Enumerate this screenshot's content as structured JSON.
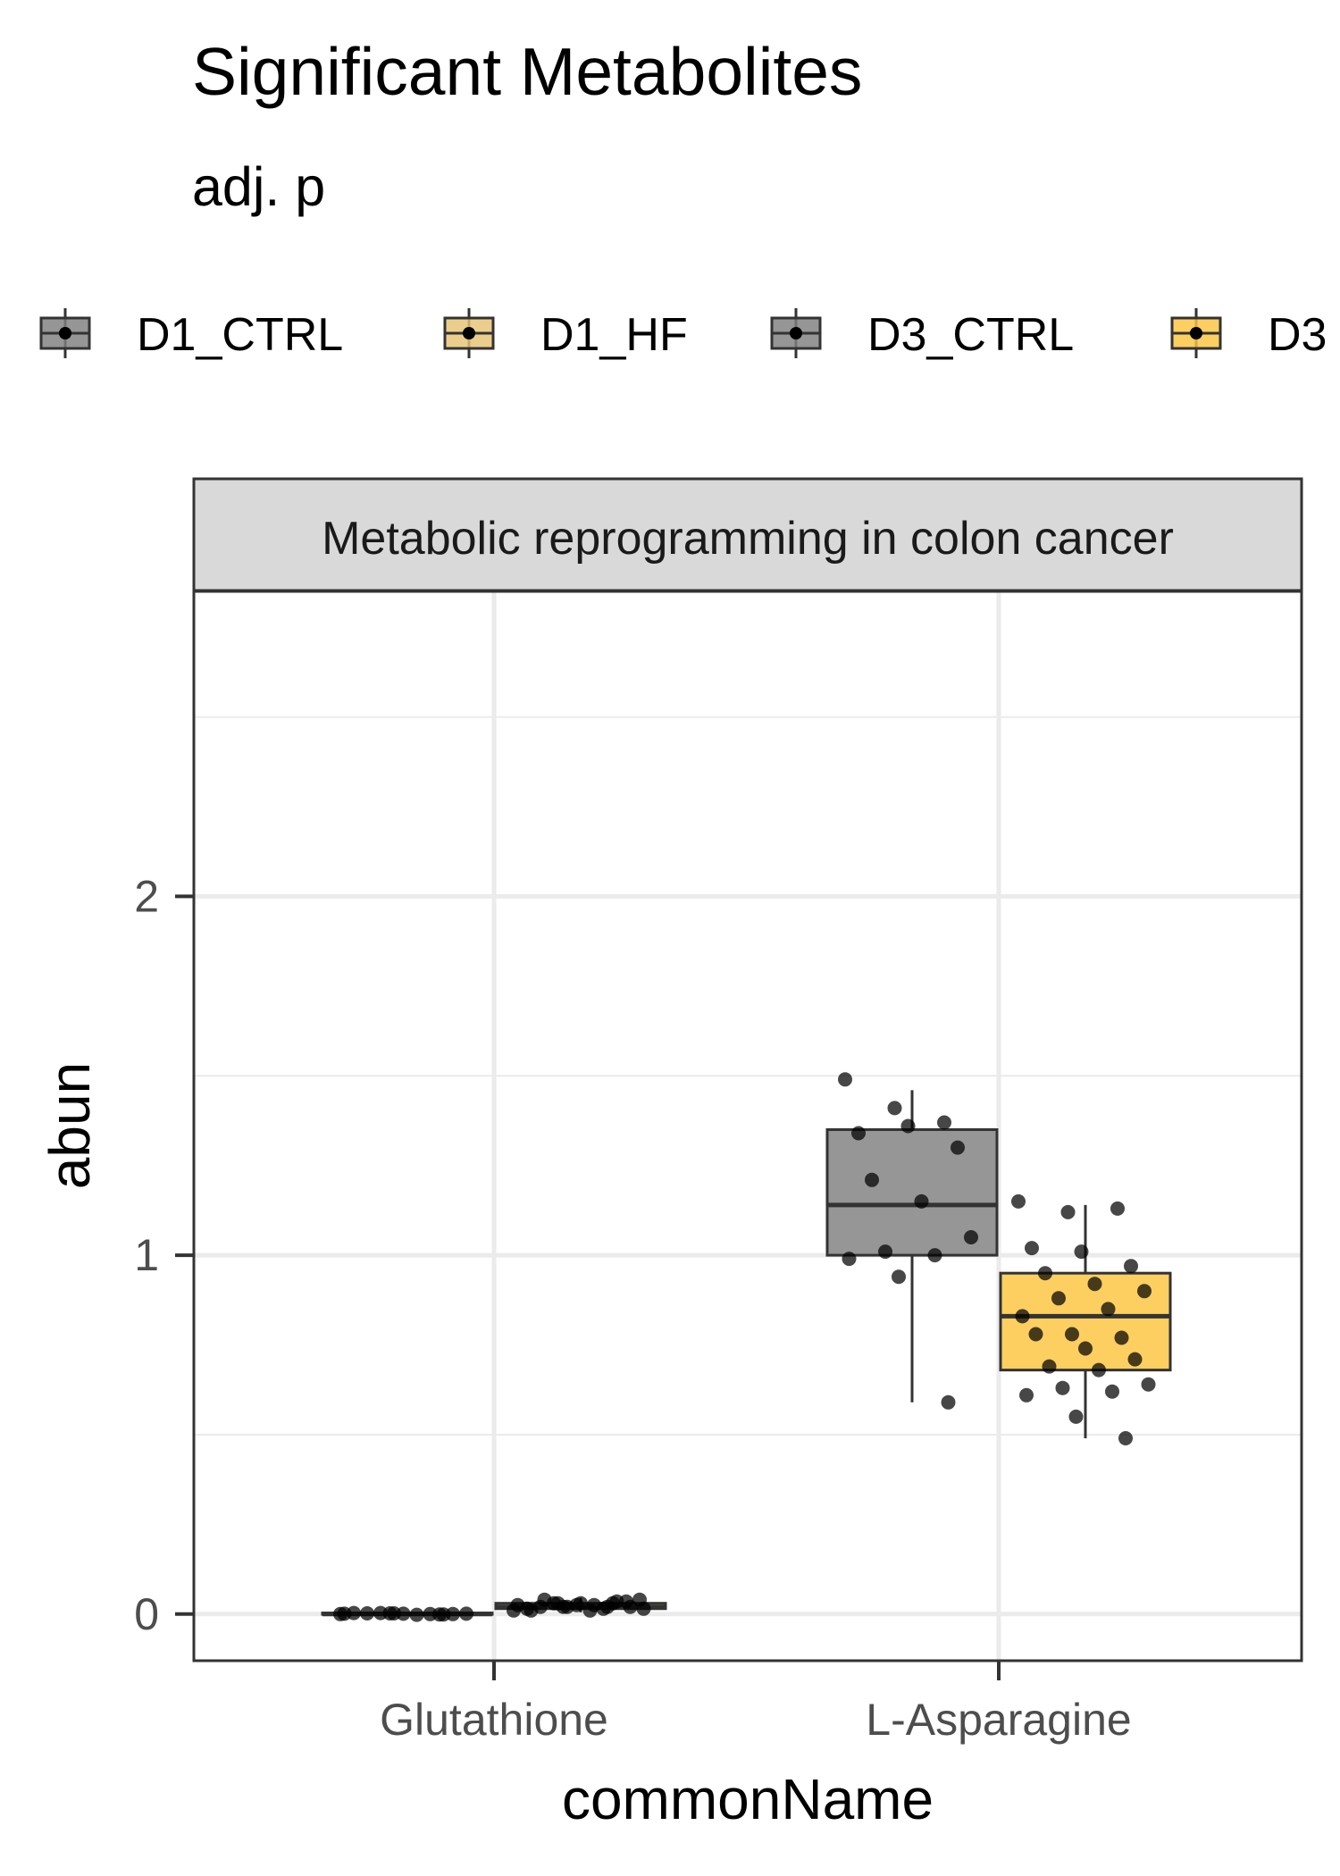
{
  "chart_data": {
    "type": "box",
    "title": "Significant Metabolites",
    "subtitle": "adj. p",
    "facet_label": "Metabolic reprogramming in colon cancer",
    "xlabel": "commonName",
    "ylabel": "abun",
    "categories": [
      "Glutathione",
      "L-Asparagine"
    ],
    "ylim": [
      -0.13,
      2.85
    ],
    "yticks": [
      0,
      1,
      2
    ],
    "grid": true,
    "legend_position": "top",
    "legend": [
      {
        "name": "D1_CTRL",
        "color": "#7f7f7f"
      },
      {
        "name": "D1_HF",
        "color": "#e8c373"
      },
      {
        "name": "D3_CTRL",
        "color": "#7f7f7f"
      },
      {
        "name": "D3",
        "color": "#fcc43e"
      }
    ],
    "series": [
      {
        "color": "#7f7f7f",
        "boxes": [
          {
            "category": "Glutathione",
            "q1": 0.0,
            "median": 0.0,
            "q3": 0.003,
            "whisker_low": -0.002,
            "whisker_high": 0.006,
            "points": [
              0.0,
              0.002,
              -0.001,
              0.003,
              0.001,
              0.0,
              0.002,
              -0.002,
              0.001,
              0.003,
              0.0,
              0.001,
              0.002,
              -0.001
            ]
          },
          {
            "category": "L-Asparagine",
            "q1": 1.0,
            "median": 1.14,
            "q3": 1.35,
            "whisker_low": 0.59,
            "whisker_high": 1.46,
            "points": [
              1.49,
              1.41,
              1.37,
              1.34,
              1.36,
              1.3,
              1.21,
              1.15,
              1.05,
              1.01,
              1.0,
              0.99,
              0.94,
              0.59
            ]
          }
        ]
      },
      {
        "color": "#fcc43e",
        "boxes": [
          {
            "category": "Glutathione",
            "q1": 0.015,
            "median": 0.02,
            "q3": 0.03,
            "whisker_low": 0.005,
            "whisker_high": 0.045,
            "points": [
              0.01,
              0.02,
              0.03,
              0.015,
              0.025,
              0.035,
              0.02,
              0.01,
              0.04,
              0.03,
              0.015,
              0.025,
              0.02,
              0.035,
              0.01,
              0.03,
              0.02,
              0.04,
              0.025,
              0.015,
              0.03,
              0.02
            ]
          },
          {
            "category": "L-Asparagine",
            "q1": 0.68,
            "median": 0.83,
            "q3": 0.95,
            "whisker_low": 0.49,
            "whisker_high": 1.14,
            "points": [
              1.15,
              1.12,
              1.13,
              1.02,
              1.01,
              0.97,
              0.95,
              0.92,
              0.9,
              0.88,
              0.85,
              0.83,
              0.78,
              0.77,
              0.78,
              0.74,
              0.71,
              0.69,
              0.68,
              0.64,
              0.63,
              0.62,
              0.61,
              0.55,
              0.49
            ]
          }
        ]
      }
    ]
  }
}
